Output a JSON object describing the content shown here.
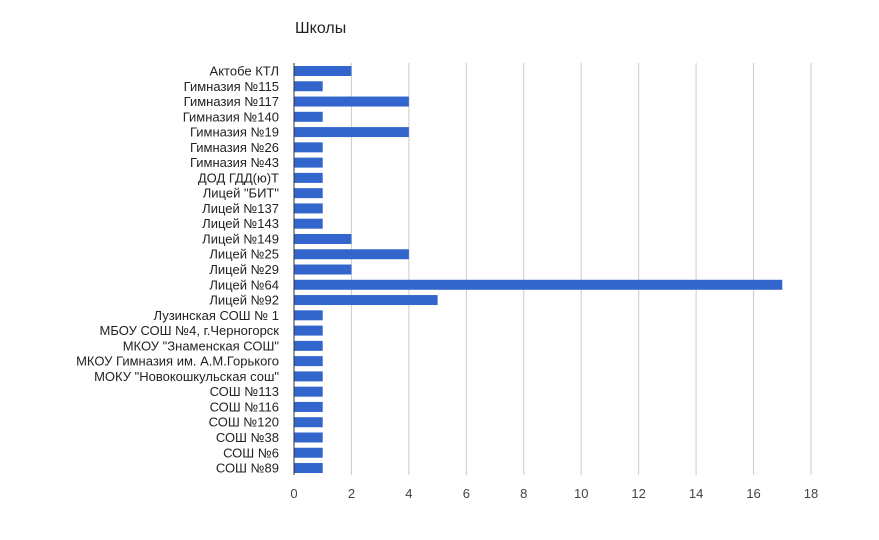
{
  "chart_data": {
    "type": "bar",
    "orientation": "horizontal",
    "title": "Школы",
    "categories": [
      "Актобе КТЛ",
      "Гимназия №115",
      "Гимназия №117",
      "Гимназия №140",
      "Гимназия №19",
      "Гимназия №26",
      "Гимназия №43",
      "ДОД ГДД(ю)Т",
      "Лицей \"БИТ\"",
      "Лицей №137",
      "Лицей №143",
      "Лицей №149",
      "Лицей №25",
      "Лицей №29",
      "Лицей №64",
      "Лицей №92",
      "Лузинская СОШ № 1",
      "МБОУ СОШ №4, г.Черногорск",
      "МКОУ \"Знаменская СОШ\"",
      "МКОУ Гимназия им. А.М.Горького",
      "МОКУ \"Новокошкульская сош\"",
      "СОШ №113",
      "СОШ №116",
      "СОШ №120",
      "СОШ №38",
      "СОШ №6",
      "СОШ №89"
    ],
    "values": [
      2,
      1,
      4,
      1,
      4,
      1,
      1,
      1,
      1,
      1,
      1,
      2,
      4,
      2,
      17,
      5,
      1,
      1,
      1,
      1,
      1,
      1,
      1,
      1,
      1,
      1,
      1
    ],
    "xlim": [
      0,
      18
    ],
    "xticks": [
      "0",
      "2",
      "4",
      "6",
      "8",
      "10",
      "12",
      "14",
      "16",
      "18"
    ],
    "xlabel": "",
    "ylabel": "",
    "grid": "vertical",
    "legend": "none",
    "colors": {
      "bar": "#3366cc",
      "grid": "#cccccc",
      "axis": "#333333"
    }
  }
}
